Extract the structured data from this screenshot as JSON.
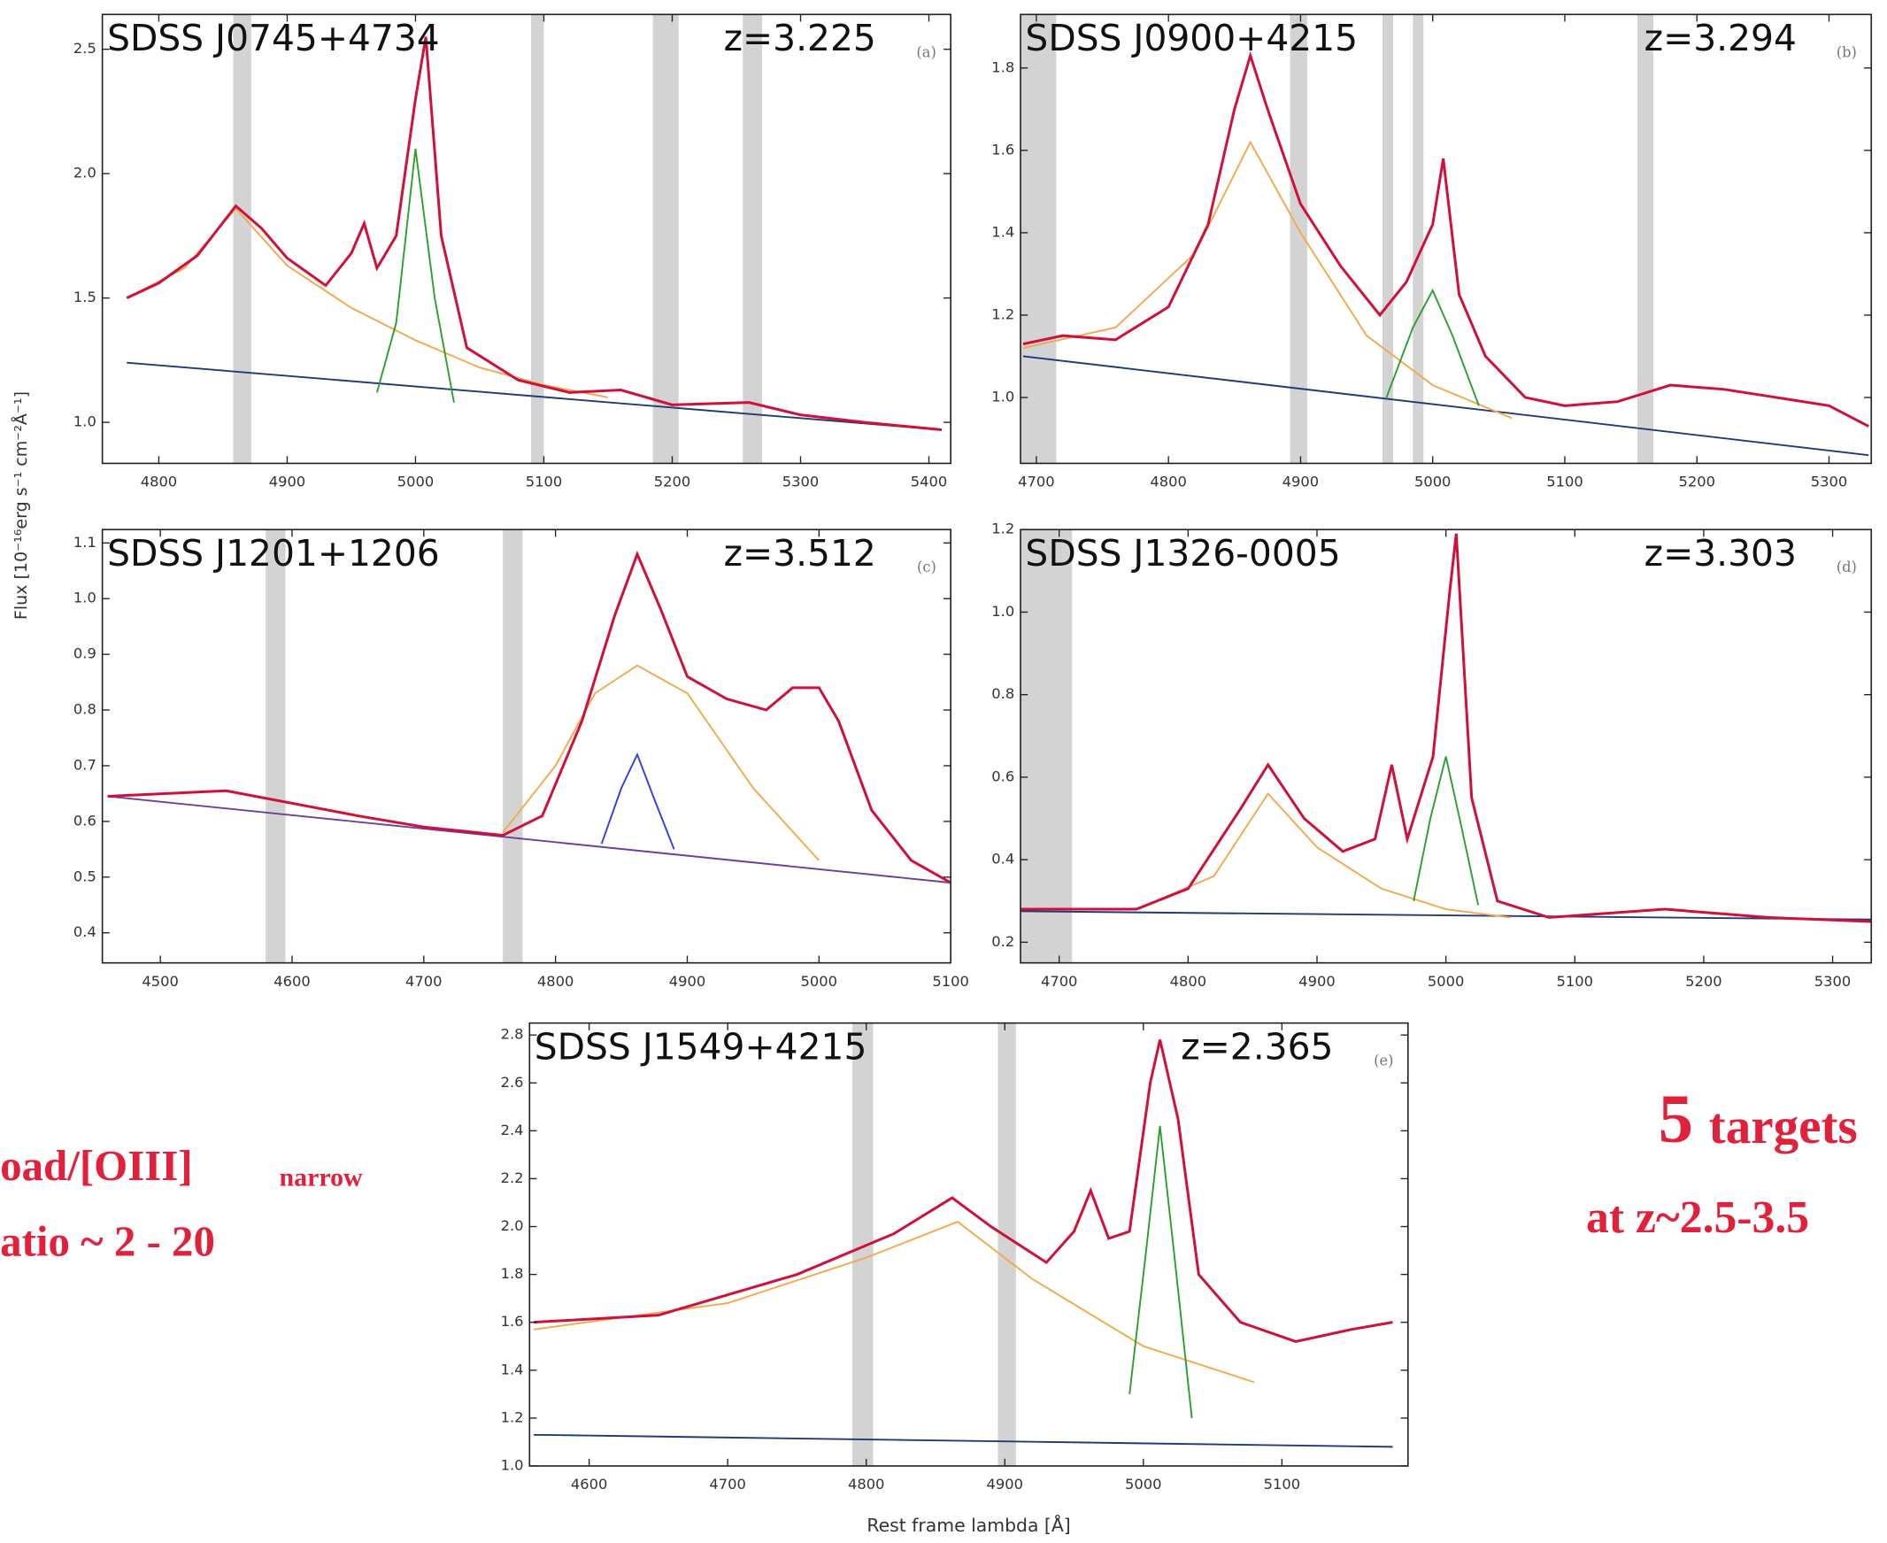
{
  "chart_data": [
    {
      "type": "line",
      "title": "SDSS J0745+4734",
      "subtitle": "z=3.225",
      "panel": "(a)",
      "xlim": [
        4756,
        5417
      ],
      "ylim": [
        0.835,
        2.64
      ],
      "xticks": [
        4800,
        4900,
        5000,
        5100,
        5200,
        5300,
        5400
      ],
      "yticks": [
        {
          "value": 1,
          "label": "1.0"
        },
        1.5,
        {
          "value": 2,
          "label": "2.0"
        },
        2.5
      ],
      "shaded_regions": [
        [
          4858,
          4872
        ],
        [
          5090,
          5100
        ],
        [
          5185,
          5205
        ],
        [
          5255,
          5270
        ]
      ],
      "series": [
        {
          "color": "#1f3a78",
          "x": [
            4775,
            5410
          ],
          "values": [
            1.24,
            0.97
          ]
        },
        {
          "color": "#f5a84a",
          "x": [
            4775,
            4820,
            4860,
            4900,
            4950,
            5000,
            5050,
            5100,
            5150
          ],
          "values": [
            1.5,
            1.62,
            1.86,
            1.63,
            1.46,
            1.33,
            1.22,
            1.15,
            1.1
          ]
        },
        {
          "color": "#2ca02c",
          "x": [
            4970,
            4985,
            5000,
            5015,
            5030
          ],
          "values": [
            1.12,
            1.4,
            2.1,
            1.5,
            1.08
          ]
        },
        {
          "color": "#d0103a",
          "x": [
            4775,
            4800,
            4830,
            4860,
            4880,
            4900,
            4930,
            4950,
            4960,
            4970,
            4985,
            5000,
            5008,
            5020,
            5040,
            5080,
            5120,
            5160,
            5200,
            5260,
            5300,
            5350,
            5410
          ],
          "values": [
            1.5,
            1.56,
            1.67,
            1.87,
            1.78,
            1.66,
            1.55,
            1.68,
            1.8,
            1.62,
            1.75,
            2.3,
            2.55,
            1.75,
            1.3,
            1.17,
            1.12,
            1.13,
            1.07,
            1.08,
            1.03,
            1.0,
            0.97
          ]
        }
      ]
    },
    {
      "type": "line",
      "title": "SDSS J0900+4215",
      "subtitle": "z=3.294",
      "panel": "(b)",
      "xlim": [
        4688,
        5332
      ],
      "ylim": [
        0.84,
        1.93
      ],
      "xticks": [
        4700,
        4800,
        4900,
        5000,
        5100,
        5200,
        5300
      ],
      "yticks": [
        {
          "value": 1,
          "label": "1.0"
        },
        1.2,
        1.4,
        1.6,
        1.8
      ],
      "shaded_regions": [
        [
          4688,
          4715
        ],
        [
          4892,
          4905
        ],
        [
          4962,
          4970
        ],
        [
          4985,
          4993
        ],
        [
          5155,
          5167
        ]
      ],
      "series": [
        {
          "color": "#1f3a78",
          "x": [
            4690,
            5330
          ],
          "values": [
            1.1,
            0.86
          ]
        },
        {
          "color": "#f5a84a",
          "x": [
            4690,
            4760,
            4820,
            4862,
            4900,
            4950,
            5000,
            5060
          ],
          "values": [
            1.12,
            1.17,
            1.35,
            1.62,
            1.4,
            1.15,
            1.03,
            0.95
          ]
        },
        {
          "color": "#2ca02c",
          "x": [
            4965,
            4985,
            5000,
            5015,
            5035
          ],
          "values": [
            1.0,
            1.17,
            1.26,
            1.15,
            0.98
          ]
        },
        {
          "color": "#d0103a",
          "x": [
            4690,
            4720,
            4760,
            4800,
            4830,
            4850,
            4862,
            4875,
            4900,
            4930,
            4960,
            4980,
            5000,
            5008,
            5020,
            5040,
            5070,
            5100,
            5140,
            5180,
            5220,
            5260,
            5300,
            5330
          ],
          "values": [
            1.13,
            1.15,
            1.14,
            1.22,
            1.42,
            1.7,
            1.83,
            1.7,
            1.47,
            1.32,
            1.2,
            1.28,
            1.42,
            1.58,
            1.25,
            1.1,
            1.0,
            0.98,
            0.99,
            1.03,
            1.02,
            1.0,
            0.98,
            0.93
          ]
        }
      ]
    },
    {
      "type": "line",
      "title": "SDSS J1201+1206",
      "subtitle": "z=3.512",
      "panel": "(c)",
      "xlim": [
        4456,
        5100
      ],
      "ylim": [
        0.346,
        1.124
      ],
      "xticks": [
        4500,
        4600,
        4700,
        4800,
        4900,
        5000,
        5100
      ],
      "yticks": [
        0.4,
        0.5,
        0.6,
        0.7,
        0.8,
        0.9,
        {
          "value": 1,
          "label": "1.0"
        },
        1.1
      ],
      "shaded_regions": [
        [
          4580,
          4595
        ],
        [
          4760,
          4775
        ]
      ],
      "series": [
        {
          "color": "#6a3fa0",
          "x": [
            4460,
            5100
          ],
          "values": [
            0.645,
            0.49
          ]
        },
        {
          "color": "#f5a84a",
          "x": [
            4760,
            4800,
            4830,
            4862,
            4900,
            4950,
            5000
          ],
          "values": [
            0.58,
            0.7,
            0.83,
            0.88,
            0.83,
            0.66,
            0.53
          ]
        },
        {
          "color": "#2f3fe0",
          "x": [
            4835,
            4850,
            4862,
            4875,
            4890
          ],
          "values": [
            0.56,
            0.66,
            0.72,
            0.64,
            0.55
          ]
        },
        {
          "color": "#d0103a",
          "x": [
            4460,
            4550,
            4650,
            4700,
            4760,
            4790,
            4820,
            4845,
            4862,
            4880,
            4900,
            4930,
            4960,
            4980,
            5000,
            5015,
            5040,
            5070,
            5100
          ],
          "values": [
            0.645,
            0.655,
            0.61,
            0.59,
            0.575,
            0.61,
            0.78,
            0.97,
            1.08,
            0.98,
            0.86,
            0.82,
            0.8,
            0.84,
            0.84,
            0.78,
            0.62,
            0.53,
            0.49
          ]
        }
      ]
    },
    {
      "type": "line",
      "title": "SDSS J1326-0005",
      "subtitle": "z=3.303",
      "panel": "(d)",
      "xlim": [
        4670,
        5330
      ],
      "ylim": [
        0.15,
        1.2
      ],
      "xticks": [
        4700,
        4800,
        4900,
        5000,
        5100,
        5200,
        5300
      ],
      "yticks": [
        0.2,
        0.4,
        0.6,
        0.8,
        {
          "value": 1,
          "label": "1.0"
        },
        1.2
      ],
      "shaded_regions": [
        [
          4670,
          4710
        ]
      ],
      "series": [
        {
          "color": "#1f3a78",
          "x": [
            4670,
            5330
          ],
          "values": [
            0.275,
            0.255
          ]
        },
        {
          "color": "#f5a84a",
          "x": [
            4760,
            4820,
            4862,
            4900,
            4950,
            5000,
            5050
          ],
          "values": [
            0.28,
            0.36,
            0.56,
            0.43,
            0.33,
            0.28,
            0.26
          ]
        },
        {
          "color": "#2ca02c",
          "x": [
            4975,
            4988,
            5000,
            5012,
            5025
          ],
          "values": [
            0.3,
            0.5,
            0.65,
            0.48,
            0.29
          ]
        },
        {
          "color": "#d0103a",
          "x": [
            4670,
            4760,
            4800,
            4840,
            4862,
            4890,
            4920,
            4945,
            4958,
            4970,
            4990,
            5003,
            5008,
            5020,
            5040,
            5080,
            5170,
            5250,
            5330
          ],
          "values": [
            0.28,
            0.28,
            0.33,
            0.52,
            0.63,
            0.5,
            0.42,
            0.45,
            0.63,
            0.45,
            0.65,
            1.05,
            1.19,
            0.55,
            0.3,
            0.26,
            0.28,
            0.26,
            0.25
          ]
        }
      ]
    },
    {
      "type": "line",
      "title": "SDSS J1549+4215",
      "subtitle": "z=2.365",
      "panel": "(e)",
      "xlim": [
        4557,
        5191
      ],
      "ylim": [
        1.0,
        2.85
      ],
      "xticks": [
        4600,
        4700,
        4800,
        4900,
        5000,
        5100
      ],
      "yticks": [
        {
          "value": 1,
          "label": "1.0"
        },
        1.2,
        1.4,
        1.6,
        1.8,
        {
          "value": 2,
          "label": "2.0"
        },
        2.2,
        2.4,
        2.6,
        2.8
      ],
      "shaded_regions": [
        [
          4790,
          4805
        ],
        [
          4895,
          4908
        ]
      ],
      "series": [
        {
          "color": "#1f3a78",
          "x": [
            4560,
            5180
          ],
          "values": [
            1.13,
            1.08
          ]
        },
        {
          "color": "#f5a84a",
          "x": [
            4560,
            4700,
            4800,
            4866,
            4920,
            5000,
            5080
          ],
          "values": [
            1.57,
            1.68,
            1.87,
            2.02,
            1.78,
            1.5,
            1.35
          ]
        },
        {
          "color": "#2ca02c",
          "x": [
            4990,
            5002,
            5012,
            5022,
            5035
          ],
          "values": [
            1.3,
            1.9,
            2.42,
            1.9,
            1.2
          ]
        },
        {
          "color": "#d0103a",
          "x": [
            4560,
            4650,
            4750,
            4820,
            4862,
            4890,
            4930,
            4950,
            4962,
            4975,
            4990,
            5005,
            5012,
            5025,
            5040,
            5070,
            5110,
            5150,
            5180
          ],
          "values": [
            1.6,
            1.63,
            1.8,
            1.97,
            2.12,
            2.0,
            1.85,
            1.98,
            2.15,
            1.95,
            1.98,
            2.6,
            2.78,
            2.45,
            1.8,
            1.6,
            1.52,
            1.57,
            1.6
          ]
        }
      ]
    }
  ],
  "ylabel": "Flux [10⁻¹⁶erg s⁻¹ cm⁻²Å⁻¹]",
  "xlabel": "Rest frame lambda [Å]",
  "annotations": [
    "oad/[OIII]",
    "narrow",
    "atio ~ 2 - 20",
    "5",
    "targets",
    "at z~2.5-3.5"
  ]
}
